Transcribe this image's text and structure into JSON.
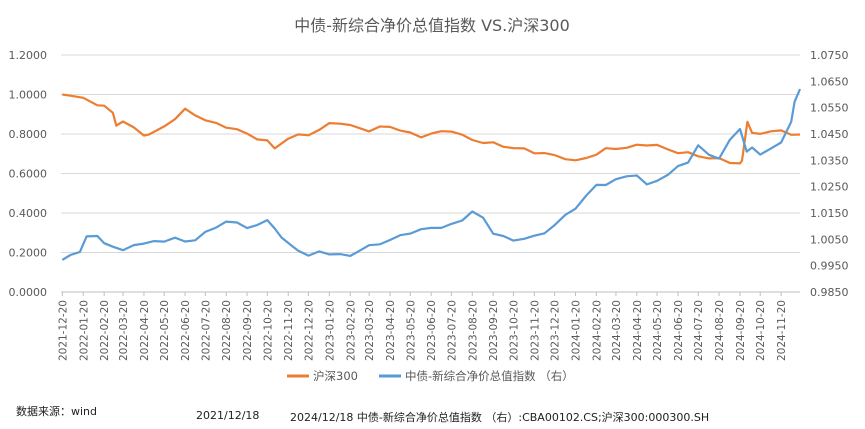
{
  "chart_data": {
    "type": "line",
    "title": "中债-新综合净价总值指数 VS.沪深300",
    "x_ticks": [
      "2021-12-20",
      "2022-01-20",
      "2022-02-20",
      "2022-03-20",
      "2022-04-20",
      "2022-05-20",
      "2022-06-20",
      "2022-07-20",
      "2022-08-20",
      "2022-09-20",
      "2022-10-20",
      "2022-11-20",
      "2022-12-20",
      "2023-01-20",
      "2023-02-20",
      "2023-03-20",
      "2023-04-20",
      "2023-05-20",
      "2023-06-20",
      "2023-07-20",
      "2023-08-20",
      "2023-09-20",
      "2023-10-20",
      "2023-11-20",
      "2023-12-20",
      "2024-01-20",
      "2024-02-20",
      "2024-03-20",
      "2024-04-20",
      "2024-05-20",
      "2024-06-20",
      "2024-07-20",
      "2024-08-20",
      "2024-09-20",
      "2024-10-20",
      "2024-11-20"
    ],
    "y_left": {
      "min": 0,
      "max": 1.2,
      "step": 0.2,
      "ticks": [
        "0.0000",
        "0.2000",
        "0.4000",
        "0.6000",
        "0.8000",
        "1.0000",
        "1.2000"
      ]
    },
    "y_right": {
      "min": 0.985,
      "max": 1.075,
      "step": 0.01,
      "ticks": [
        "0.9850",
        "0.9950",
        "1.0050",
        "1.0150",
        "1.0250",
        "1.0350",
        "1.0450",
        "1.0550",
        "1.0650",
        "1.0750"
      ]
    },
    "grid": true,
    "legend_position": "bottom",
    "series": [
      {
        "name": "沪深300",
        "axis": "left",
        "color": "#ED7D31",
        "x": [
          "2021-12-20",
          "2022-01-01",
          "2022-01-20",
          "2022-02-10",
          "2022-02-20",
          "2022-03-05",
          "2022-03-10",
          "2022-03-20",
          "2022-04-05",
          "2022-04-20",
          "2022-04-27",
          "2022-05-20",
          "2022-06-05",
          "2022-06-20",
          "2022-07-05",
          "2022-07-20",
          "2022-08-05",
          "2022-08-20",
          "2022-09-05",
          "2022-09-20",
          "2022-10-05",
          "2022-10-20",
          "2022-10-31",
          "2022-11-20",
          "2022-12-05",
          "2022-12-20",
          "2023-01-05",
          "2023-01-20",
          "2023-02-05",
          "2023-02-20",
          "2023-03-05",
          "2023-03-20",
          "2023-04-05",
          "2023-04-20",
          "2023-05-05",
          "2023-05-20",
          "2023-06-05",
          "2023-06-20",
          "2023-07-05",
          "2023-07-20",
          "2023-08-05",
          "2023-08-20",
          "2023-09-05",
          "2023-09-20",
          "2023-10-05",
          "2023-10-20",
          "2023-11-05",
          "2023-11-20",
          "2023-12-05",
          "2023-12-20",
          "2024-01-05",
          "2024-01-20",
          "2024-02-05",
          "2024-02-20",
          "2024-03-05",
          "2024-03-20",
          "2024-04-05",
          "2024-04-20",
          "2024-05-05",
          "2024-05-20",
          "2024-06-05",
          "2024-06-20",
          "2024-07-05",
          "2024-07-20",
          "2024-08-05",
          "2024-08-20",
          "2024-09-05",
          "2024-09-20",
          "2024-09-23",
          "2024-10-01",
          "2024-10-08",
          "2024-10-20",
          "2024-11-05",
          "2024-11-20",
          "2024-12-05",
          "2024-12-18"
        ],
        "values": [
          1.0,
          1.0,
          0.975,
          0.95,
          0.945,
          0.9,
          0.85,
          0.86,
          0.83,
          0.8,
          0.79,
          0.84,
          0.88,
          0.92,
          0.9,
          0.87,
          0.85,
          0.84,
          0.82,
          0.8,
          0.78,
          0.76,
          0.73,
          0.78,
          0.79,
          0.8,
          0.82,
          0.85,
          0.86,
          0.84,
          0.83,
          0.82,
          0.83,
          0.84,
          0.82,
          0.8,
          0.79,
          0.8,
          0.81,
          0.82,
          0.79,
          0.77,
          0.76,
          0.75,
          0.74,
          0.73,
          0.72,
          0.71,
          0.7,
          0.69,
          0.68,
          0.66,
          0.68,
          0.7,
          0.72,
          0.73,
          0.73,
          0.74,
          0.75,
          0.74,
          0.72,
          0.71,
          0.7,
          0.69,
          0.68,
          0.67,
          0.66,
          0.65,
          0.66,
          0.87,
          0.8,
          0.8,
          0.82,
          0.81,
          0.8,
          0.8
        ]
      },
      {
        "name": "中债-新综合净价总值指数 （右）",
        "axis": "right",
        "color": "#5B9BD5",
        "x": [
          "2021-12-20",
          "2022-01-01",
          "2022-01-15",
          "2022-01-25",
          "2022-02-10",
          "2022-02-20",
          "2022-03-05",
          "2022-03-20",
          "2022-04-05",
          "2022-04-20",
          "2022-05-05",
          "2022-05-20",
          "2022-06-05",
          "2022-06-20",
          "2022-07-05",
          "2022-07-20",
          "2022-08-05",
          "2022-08-20",
          "2022-09-05",
          "2022-09-20",
          "2022-10-05",
          "2022-10-20",
          "2022-10-31",
          "2022-11-10",
          "2022-11-25",
          "2022-12-05",
          "2022-12-20",
          "2023-01-05",
          "2023-01-20",
          "2023-02-05",
          "2023-02-20",
          "2023-03-05",
          "2023-03-20",
          "2023-04-05",
          "2023-04-20",
          "2023-05-05",
          "2023-05-20",
          "2023-06-05",
          "2023-06-20",
          "2023-07-05",
          "2023-07-20",
          "2023-08-05",
          "2023-08-20",
          "2023-09-05",
          "2023-09-20",
          "2023-10-05",
          "2023-10-20",
          "2023-11-05",
          "2023-11-20",
          "2023-12-05",
          "2023-12-20",
          "2024-01-05",
          "2024-01-20",
          "2024-02-05",
          "2024-02-20",
          "2024-03-05",
          "2024-03-20",
          "2024-04-05",
          "2024-04-20",
          "2024-05-05",
          "2024-05-20",
          "2024-06-05",
          "2024-06-20",
          "2024-07-05",
          "2024-07-20",
          "2024-08-05",
          "2024-08-20",
          "2024-09-05",
          "2024-09-20",
          "2024-09-30",
          "2024-10-08",
          "2024-10-20",
          "2024-11-05",
          "2024-11-20",
          "2024-12-05",
          "2024-12-10",
          "2024-12-18"
        ],
        "values": [
          0.9975,
          0.999,
          1.0,
          1.0065,
          1.006,
          1.0035,
          1.0025,
          1.0005,
          1.003,
          1.0035,
          1.004,
          1.0045,
          1.0055,
          1.004,
          1.005,
          1.0075,
          1.0095,
          1.012,
          1.011,
          1.0095,
          1.0105,
          1.012,
          1.0095,
          1.0055,
          1.0025,
          1.001,
          0.9985,
          1.0005,
          0.9995,
          0.999,
          0.999,
          1.0005,
          1.0025,
          1.0035,
          1.0045,
          1.0065,
          1.0075,
          1.0085,
          1.0095,
          1.0095,
          1.0105,
          1.0125,
          1.0155,
          1.013,
          1.0075,
          1.006,
          1.0045,
          1.0055,
          1.006,
          1.0075,
          1.0105,
          1.014,
          1.017,
          1.0215,
          1.0255,
          1.026,
          1.0275,
          1.029,
          1.0295,
          1.0255,
          1.0275,
          1.0295,
          1.0325,
          1.0345,
          1.0405,
          1.037,
          1.036,
          1.0425,
          1.047,
          1.0385,
          1.0395,
          1.0375,
          1.0395,
          1.0415,
          1.05,
          1.057,
          1.062
        ]
      }
    ]
  },
  "footer": {
    "source": "数据来源：wind",
    "start_date": "2021/12/18",
    "end_date_note": "2024/12/18  中债-新综合净价总值指数 （右）:CBA00102.CS;沪深300:000300.SH"
  }
}
